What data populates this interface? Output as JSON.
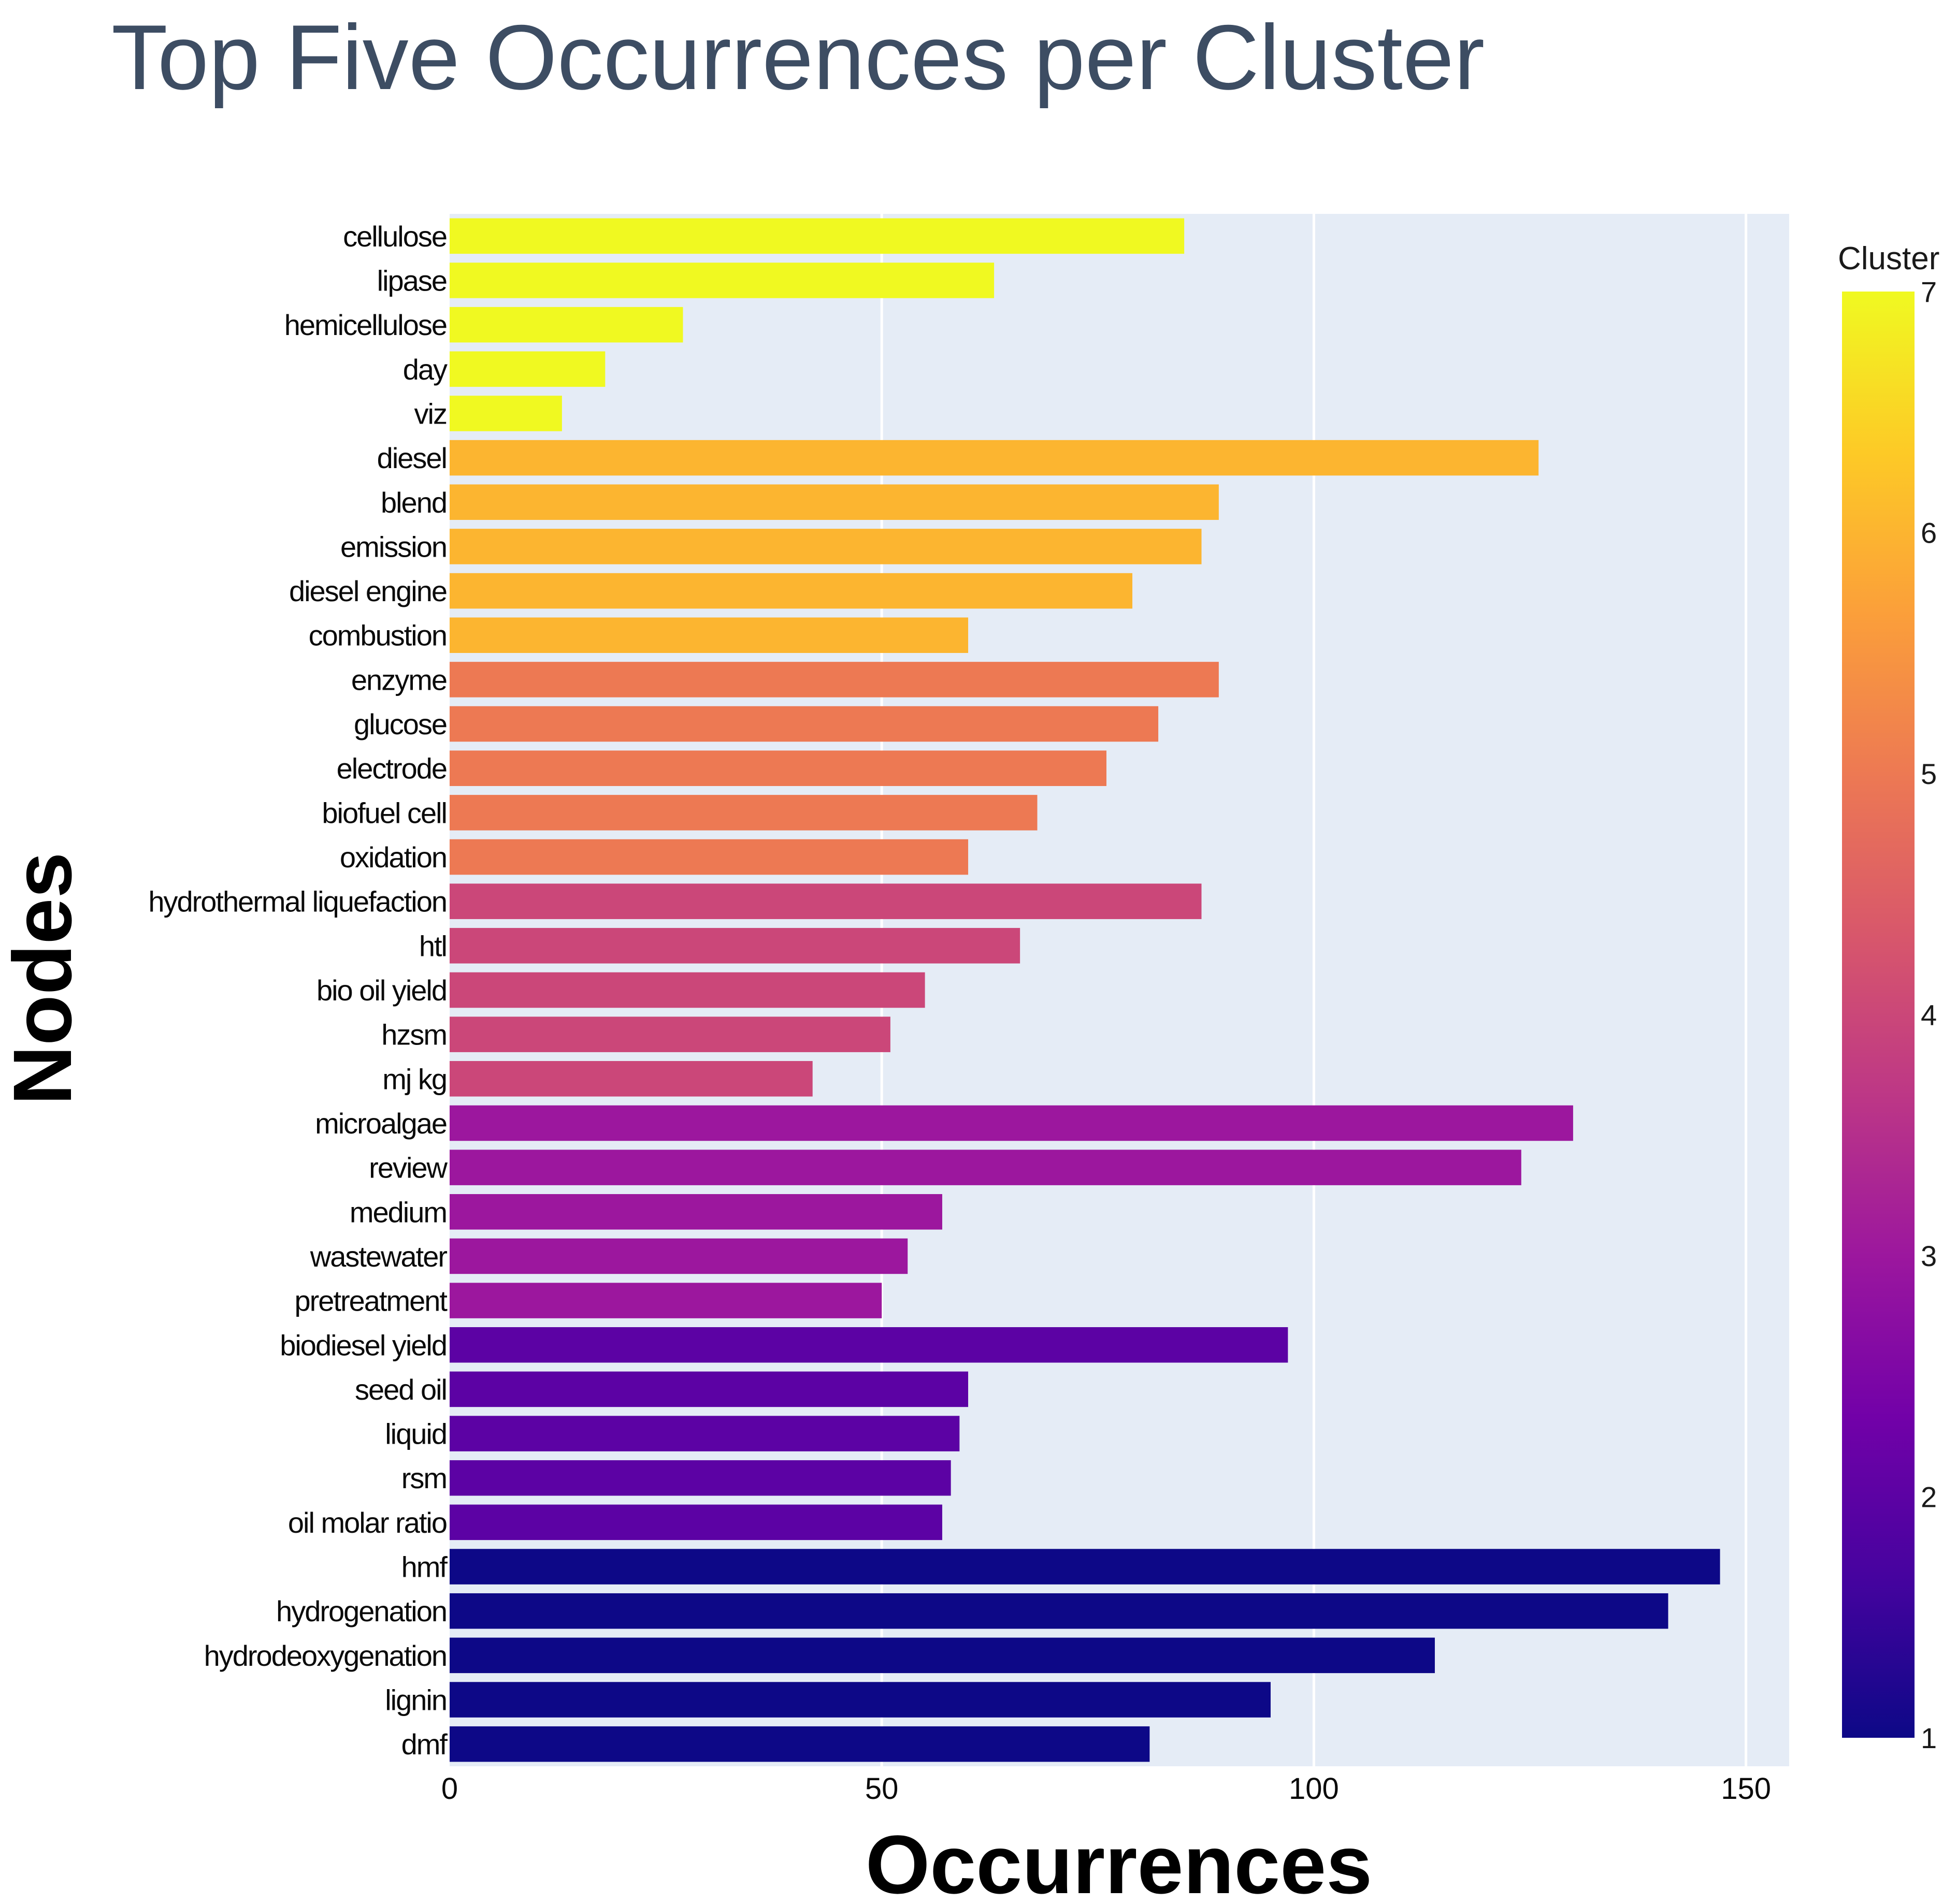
{
  "chart_data": {
    "type": "bar",
    "orientation": "horizontal",
    "title": "Top Five Occurrences per Cluster",
    "xlabel": "Occurrences",
    "ylabel": "Nodes",
    "xlim": [
      0,
      155
    ],
    "xticks": [
      0,
      50,
      100,
      150
    ],
    "grid": true,
    "colorbar": {
      "title": "Cluster",
      "range": [
        1,
        7
      ],
      "ticks": [
        1,
        2,
        3,
        4,
        5,
        6,
        7
      ],
      "colorscale": [
        "#0d0887",
        "#46039f",
        "#7201a8",
        "#9c179e",
        "#bd3786",
        "#d8576b",
        "#ed7953",
        "#fb9f3a",
        "#fdca26",
        "#f0f921"
      ]
    },
    "bars": [
      {
        "label": "cellulose",
        "value": 85,
        "cluster": 7
      },
      {
        "label": "lipase",
        "value": 63,
        "cluster": 7
      },
      {
        "label": "hemicellulose",
        "value": 27,
        "cluster": 7
      },
      {
        "label": "day",
        "value": 18,
        "cluster": 7
      },
      {
        "label": "viz",
        "value": 13,
        "cluster": 7
      },
      {
        "label": "diesel",
        "value": 126,
        "cluster": 6
      },
      {
        "label": "blend",
        "value": 89,
        "cluster": 6
      },
      {
        "label": "emission",
        "value": 87,
        "cluster": 6
      },
      {
        "label": "diesel engine",
        "value": 79,
        "cluster": 6
      },
      {
        "label": "combustion",
        "value": 60,
        "cluster": 6
      },
      {
        "label": "enzyme",
        "value": 89,
        "cluster": 5
      },
      {
        "label": "glucose",
        "value": 82,
        "cluster": 5
      },
      {
        "label": "electrode",
        "value": 76,
        "cluster": 5
      },
      {
        "label": "biofuel cell",
        "value": 68,
        "cluster": 5
      },
      {
        "label": "oxidation",
        "value": 60,
        "cluster": 5
      },
      {
        "label": "hydrothermal liquefaction",
        "value": 87,
        "cluster": 4
      },
      {
        "label": "htl",
        "value": 66,
        "cluster": 4
      },
      {
        "label": "bio oil yield",
        "value": 55,
        "cluster": 4
      },
      {
        "label": "hzsm",
        "value": 51,
        "cluster": 4
      },
      {
        "label": "mj kg",
        "value": 42,
        "cluster": 4
      },
      {
        "label": "microalgae",
        "value": 130,
        "cluster": 3
      },
      {
        "label": "review",
        "value": 124,
        "cluster": 3
      },
      {
        "label": "medium",
        "value": 57,
        "cluster": 3
      },
      {
        "label": "wastewater",
        "value": 53,
        "cluster": 3
      },
      {
        "label": "pretreatment",
        "value": 50,
        "cluster": 3
      },
      {
        "label": "biodiesel yield",
        "value": 97,
        "cluster": 2
      },
      {
        "label": "seed oil",
        "value": 60,
        "cluster": 2
      },
      {
        "label": "liquid",
        "value": 59,
        "cluster": 2
      },
      {
        "label": "rsm",
        "value": 58,
        "cluster": 2
      },
      {
        "label": "oil molar ratio",
        "value": 57,
        "cluster": 2
      },
      {
        "label": "hmf",
        "value": 147,
        "cluster": 1
      },
      {
        "label": "hydrogenation",
        "value": 141,
        "cluster": 1
      },
      {
        "label": "hydrodeoxygenation",
        "value": 114,
        "cluster": 1
      },
      {
        "label": "lignin",
        "value": 95,
        "cluster": 1
      },
      {
        "label": "dmf",
        "value": 81,
        "cluster": 1
      }
    ],
    "colors": {
      "plot_background": "#e5ecf6",
      "grid": "#ffffff",
      "title": "#3d4d63",
      "text": "#0a0a0a",
      "axis_title": "#000000"
    }
  }
}
